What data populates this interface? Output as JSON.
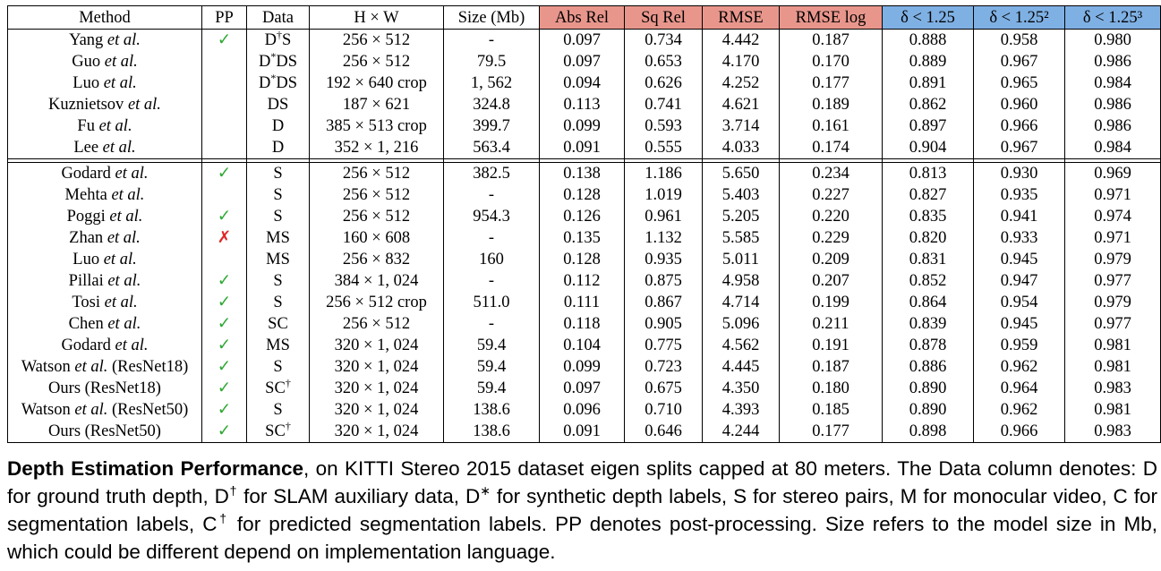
{
  "table": {
    "headers": [
      "Method",
      "PP",
      "Data",
      "H × W",
      "Size (Mb)",
      "Abs Rel",
      "Sq Rel",
      "RMSE",
      "RMSE log",
      "δ < 1.25",
      "δ < 1.25²",
      "δ < 1.25³"
    ],
    "header_colors": {
      "error_metrics": "#e8968c",
      "accuracy_metrics": "#7fb0e3"
    },
    "groups": [
      [
        {
          "method": "Yang",
          "suffix": "",
          "pp": "✓",
          "data": "D",
          "data_sup": "†",
          "data_tail": "S",
          "hw": "256 × 512",
          "size": "-",
          "vals": [
            "0.097",
            "0.734",
            "4.442",
            "0.187",
            "0.888",
            "0.958",
            "0.980"
          ],
          "bold": []
        },
        {
          "method": "Guo",
          "suffix": "",
          "pp": "",
          "data": "D",
          "data_sup": "*",
          "data_tail": "DS",
          "hw": "256 × 512",
          "size": "79.5",
          "vals": [
            "0.097",
            "0.653",
            "4.170",
            "0.170",
            "0.889",
            "0.967",
            "0.986"
          ],
          "bold": [
            5,
            6
          ]
        },
        {
          "method": "Luo",
          "suffix": "",
          "pp": "",
          "data": "D",
          "data_sup": "*",
          "data_tail": "DS",
          "hw": "192 × 640 crop",
          "size": "1, 562",
          "vals": [
            "0.094",
            "0.626",
            "4.252",
            "0.177",
            "0.891",
            "0.965",
            "0.984"
          ],
          "bold": []
        },
        {
          "method": "Kuznietsov",
          "suffix": "",
          "pp": "",
          "data": "DS",
          "data_sup": "",
          "data_tail": "",
          "hw": "187 × 621",
          "size": "324.8",
          "vals": [
            "0.113",
            "0.741",
            "4.621",
            "0.189",
            "0.862",
            "0.960",
            "0.986"
          ],
          "bold": [
            6
          ]
        },
        {
          "method": "Fu",
          "suffix": "",
          "pp": "",
          "data": "D",
          "data_sup": "",
          "data_tail": "",
          "hw": "385 × 513 crop",
          "size": "399.7",
          "vals": [
            "0.099",
            "0.593",
            "3.714",
            "0.161",
            "0.897",
            "0.966",
            "0.986"
          ],
          "bold": [
            2,
            3,
            6
          ]
        },
        {
          "method": "Lee",
          "suffix": "",
          "pp": "",
          "data": "D",
          "data_sup": "",
          "data_tail": "",
          "hw": "352 × 1, 216",
          "size": "563.4",
          "vals": [
            "0.091",
            "0.555",
            "4.033",
            "0.174",
            "0.904",
            "0.967",
            "0.984"
          ],
          "bold": [
            0,
            1,
            4,
            5
          ]
        }
      ],
      [
        {
          "method": "Godard",
          "suffix": "",
          "pp": "✓",
          "data": "S",
          "data_sup": "",
          "data_tail": "",
          "hw": "256 × 512",
          "size": "382.5",
          "vals": [
            "0.138",
            "1.186",
            "5.650",
            "0.234",
            "0.813",
            "0.930",
            "0.969"
          ],
          "bold": []
        },
        {
          "method": "Mehta",
          "suffix": "",
          "pp": "",
          "data": "S",
          "data_sup": "",
          "data_tail": "",
          "hw": "256 × 512",
          "size": "-",
          "vals": [
            "0.128",
            "1.019",
            "5.403",
            "0.227",
            "0.827",
            "0.935",
            "0.971"
          ],
          "bold": []
        },
        {
          "method": "Poggi",
          "suffix": "",
          "pp": "✓",
          "data": "S",
          "data_sup": "",
          "data_tail": "",
          "hw": "256 × 512",
          "size": "954.3",
          "vals": [
            "0.126",
            "0.961",
            "5.205",
            "0.220",
            "0.835",
            "0.941",
            "0.974"
          ],
          "bold": []
        },
        {
          "method": "Zhan",
          "suffix": "",
          "pp": "✗",
          "data": "MS",
          "data_sup": "",
          "data_tail": "",
          "hw": "160 × 608",
          "size": "-",
          "vals": [
            "0.135",
            "1.132",
            "5.585",
            "0.229",
            "0.820",
            "0.933",
            "0.971"
          ],
          "bold": []
        },
        {
          "method": "Luo",
          "suffix": "",
          "pp": "",
          "data": "MS",
          "data_sup": "",
          "data_tail": "",
          "hw": "256 × 832",
          "size": "160",
          "vals": [
            "0.128",
            "0.935",
            "5.011",
            "0.209",
            "0.831",
            "0.945",
            "0.979"
          ],
          "bold": []
        },
        {
          "method": "Pillai",
          "suffix": "",
          "pp": "✓",
          "data": "S",
          "data_sup": "",
          "data_tail": "",
          "hw": "384 × 1, 024",
          "size": "-",
          "vals": [
            "0.112",
            "0.875",
            "4.958",
            "0.207",
            "0.852",
            "0.947",
            "0.977"
          ],
          "bold": []
        },
        {
          "method": "Tosi",
          "suffix": "",
          "pp": "✓",
          "data": "S",
          "data_sup": "",
          "data_tail": "",
          "hw": "256 × 512 crop",
          "size": "511.0",
          "vals": [
            "0.111",
            "0.867",
            "4.714",
            "0.199",
            "0.864",
            "0.954",
            "0.979"
          ],
          "bold": []
        },
        {
          "method": "Chen",
          "suffix": "",
          "pp": "✓",
          "data": "SC",
          "data_sup": "",
          "data_tail": "",
          "hw": "256 × 512",
          "size": "-",
          "vals": [
            "0.118",
            "0.905",
            "5.096",
            "0.211",
            "0.839",
            "0.945",
            "0.977"
          ],
          "bold": []
        },
        {
          "method": "Godard",
          "suffix": "",
          "pp": "✓",
          "data": "MS",
          "data_sup": "",
          "data_tail": "",
          "hw": "320 × 1, 024",
          "size": "59.4",
          "vals": [
            "0.104",
            "0.775",
            "4.562",
            "0.191",
            "0.878",
            "0.959",
            "0.981"
          ],
          "bold": []
        },
        {
          "method": "Watson",
          "suffix": " (ResNet18)",
          "pp": "✓",
          "data": "S",
          "data_sup": "",
          "data_tail": "",
          "hw": "320 × 1, 024",
          "size": "59.4",
          "vals": [
            "0.099",
            "0.723",
            "4.445",
            "0.187",
            "0.886",
            "0.962",
            "0.981"
          ],
          "bold": []
        },
        {
          "method": "Ours (ResNet18)",
          "suffix": null,
          "pp": "✓",
          "data": "SC",
          "data_sup": "†",
          "data_tail": "",
          "hw": "320 × 1, 024",
          "size": "59.4",
          "vals": [
            "0.097",
            "0.675",
            "4.350",
            "0.180",
            "0.890",
            "0.964",
            "0.983"
          ],
          "bold": []
        },
        {
          "method": "Watson",
          "suffix": " (ResNet50)",
          "pp": "✓",
          "data": "S",
          "data_sup": "",
          "data_tail": "",
          "hw": "320 × 1, 024",
          "size": "138.6",
          "vals": [
            "0.096",
            "0.710",
            "4.393",
            "0.185",
            "0.890",
            "0.962",
            "0.981"
          ],
          "bold": []
        },
        {
          "method": "Ours (ResNet50)",
          "suffix": null,
          "pp": "✓",
          "data": "SC",
          "data_sup": "†",
          "data_tail": "",
          "hw": "320 × 1, 024",
          "size": "138.6",
          "vals": [
            "0.091",
            "0.646",
            "4.244",
            "0.177",
            "0.898",
            "0.966",
            "0.983"
          ],
          "bold": [
            0,
            1,
            2,
            3,
            4,
            5,
            6
          ]
        }
      ]
    ],
    "etal": "et al."
  },
  "caption": {
    "title": "Depth Estimation Performance",
    "text1": ", on KITTI Stereo 2015 dataset eigen splits capped at 80 meters. The Data column denotes: D for ground truth depth, D",
    "sup1": "†",
    "text2": " for SLAM auxiliary data, D",
    "sup2": "∗",
    "text3": " for synthetic depth labels, S for stereo pairs, M for monocular video, C for segmentation labels, C",
    "sup3": "†",
    "text4": " for predicted segmentation labels. PP denotes post-processing. Size refers to the model size in Mb, which could be different depend on implementation language."
  }
}
